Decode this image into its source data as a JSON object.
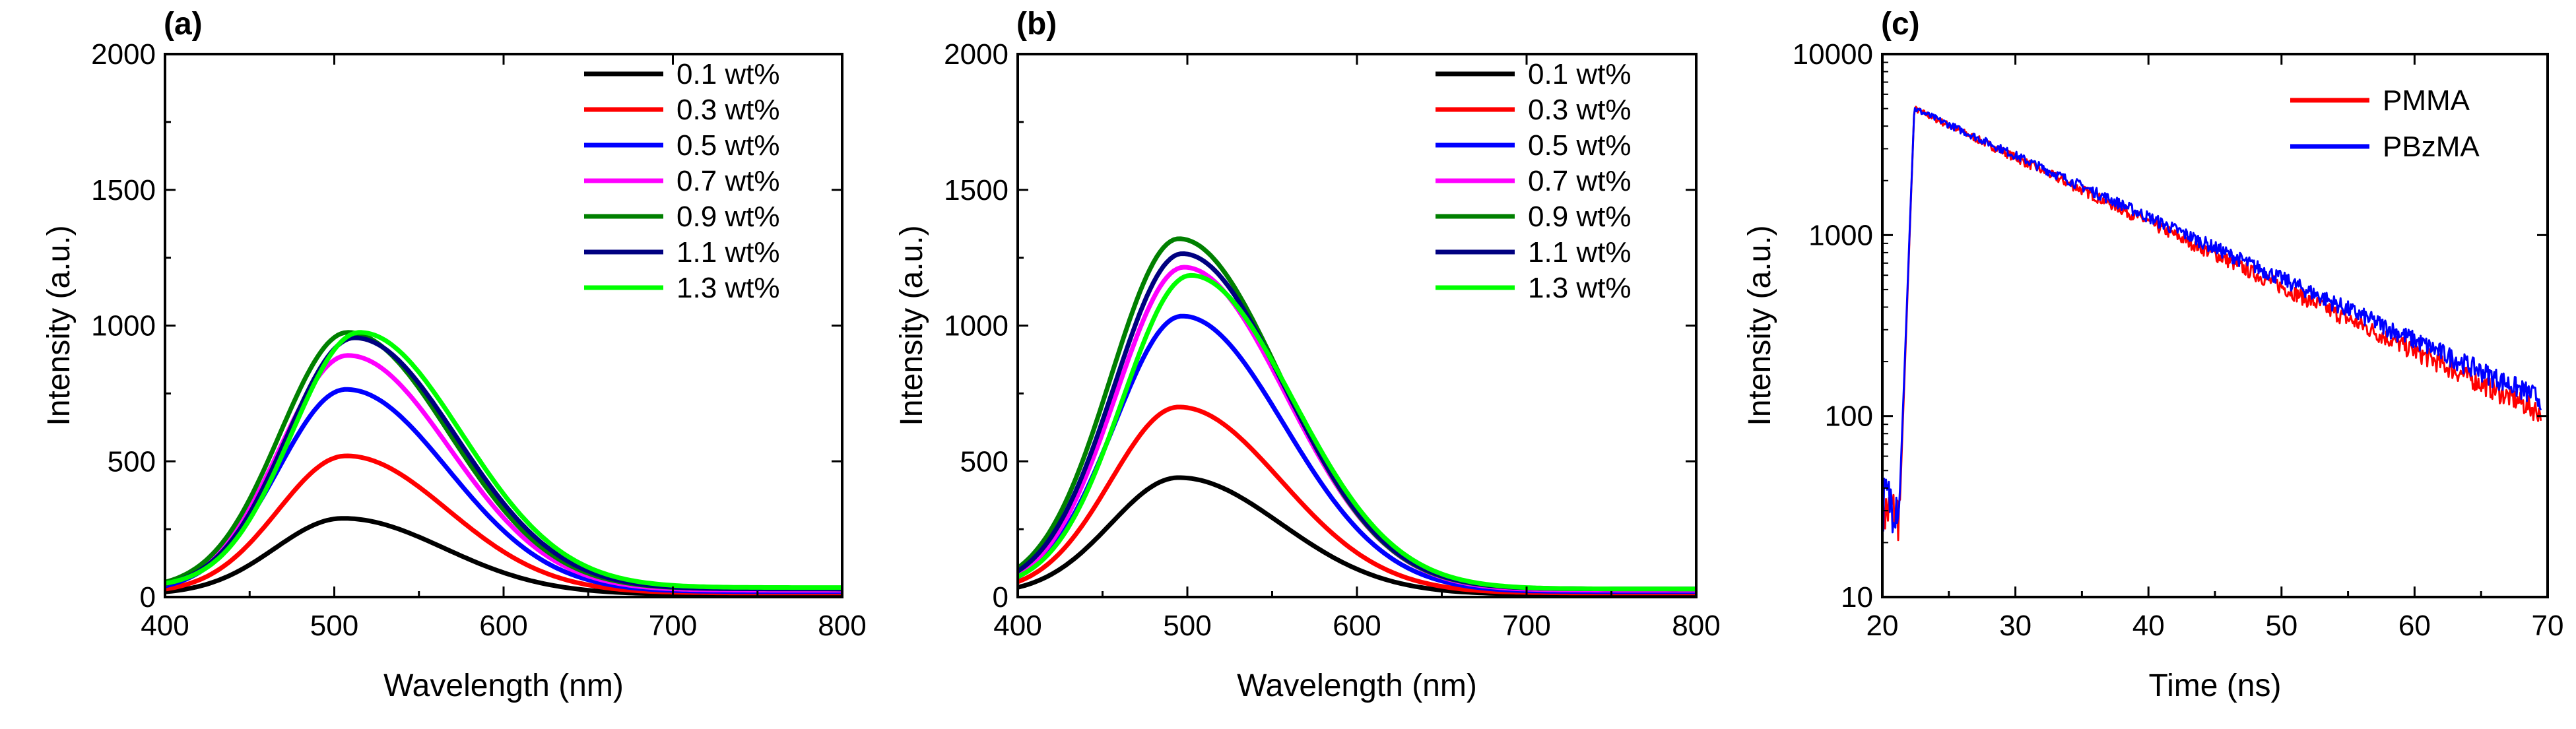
{
  "chart_data": [
    {
      "panel": "(a)",
      "type": "line",
      "xlabel": "Wavelength (nm)",
      "ylabel": "Intensity (a.u.)",
      "xlim": [
        400,
        800
      ],
      "ylim": [
        0,
        2000
      ],
      "xticks": [
        400,
        500,
        600,
        700,
        800
      ],
      "yticks": [
        0,
        500,
        1000,
        1500,
        2000
      ],
      "grid": false,
      "legend_position": "top-right",
      "series": [
        {
          "name": "0.1 wt%",
          "color": "#000000",
          "peak_x": 505,
          "peak_y": 290,
          "baseline": 10
        },
        {
          "name": "0.3 wt%",
          "color": "#ff0000",
          "peak_x": 507,
          "peak_y": 520,
          "baseline": 15
        },
        {
          "name": "0.5 wt%",
          "color": "#0000ff",
          "peak_x": 507,
          "peak_y": 765,
          "baseline": 20
        },
        {
          "name": "0.7 wt%",
          "color": "#ff00ff",
          "peak_x": 508,
          "peak_y": 890,
          "baseline": 25
        },
        {
          "name": "0.9 wt%",
          "color": "#008000",
          "peak_x": 508,
          "peak_y": 975,
          "baseline": 30
        },
        {
          "name": "1.1 wt%",
          "color": "#000080",
          "peak_x": 512,
          "peak_y": 955,
          "baseline": 30
        },
        {
          "name": "1.3 wt%",
          "color": "#00ff00",
          "peak_x": 515,
          "peak_y": 975,
          "baseline": 35
        }
      ]
    },
    {
      "panel": "(b)",
      "type": "line",
      "xlabel": "Wavelength (nm)",
      "ylabel": "Intensity (a.u.)",
      "xlim": [
        400,
        800
      ],
      "ylim": [
        0,
        2000
      ],
      "xticks": [
        400,
        500,
        600,
        700,
        800
      ],
      "yticks": [
        0,
        500,
        1000,
        1500,
        2000
      ],
      "grid": false,
      "legend_position": "top-right",
      "series": [
        {
          "name": "0.1 wt%",
          "color": "#000000",
          "peak_x": 495,
          "peak_y": 440,
          "baseline": 10
        },
        {
          "name": "0.3 wt%",
          "color": "#ff0000",
          "peak_x": 495,
          "peak_y": 700,
          "baseline": 15
        },
        {
          "name": "0.5 wt%",
          "color": "#0000ff",
          "peak_x": 497,
          "peak_y": 1035,
          "baseline": 20
        },
        {
          "name": "0.7 wt%",
          "color": "#ff00ff",
          "peak_x": 498,
          "peak_y": 1215,
          "baseline": 25
        },
        {
          "name": "0.9 wt%",
          "color": "#008000",
          "peak_x": 495,
          "peak_y": 1320,
          "baseline": 30
        },
        {
          "name": "1.1 wt%",
          "color": "#000080",
          "peak_x": 497,
          "peak_y": 1265,
          "baseline": 30
        },
        {
          "name": "1.3 wt%",
          "color": "#00ff00",
          "peak_x": 502,
          "peak_y": 1185,
          "baseline": 30
        }
      ]
    },
    {
      "panel": "(c)",
      "type": "line",
      "xlabel": "Time (ns)",
      "ylabel": "Intensity (a.u.)",
      "xlim": [
        20,
        70
      ],
      "ylim": [
        10,
        10000
      ],
      "yscale": "log",
      "xticks": [
        20,
        30,
        40,
        50,
        60,
        70
      ],
      "yticks": [
        10,
        100,
        1000,
        10000
      ],
      "grid": false,
      "legend_position": "top-right",
      "series": [
        {
          "name": "PMMA",
          "color": "#ff0000",
          "rise_start": 21.3,
          "peak_time": 22.4,
          "peak": 5000,
          "pre_level": 30,
          "end_level": 105,
          "end_time": 69.5
        },
        {
          "name": "PBzMA",
          "color": "#0000ff",
          "rise_start": 21.3,
          "peak_time": 22.4,
          "peak": 5000,
          "pre_level": 35,
          "end_level": 125,
          "end_time": 69.5
        }
      ]
    }
  ]
}
